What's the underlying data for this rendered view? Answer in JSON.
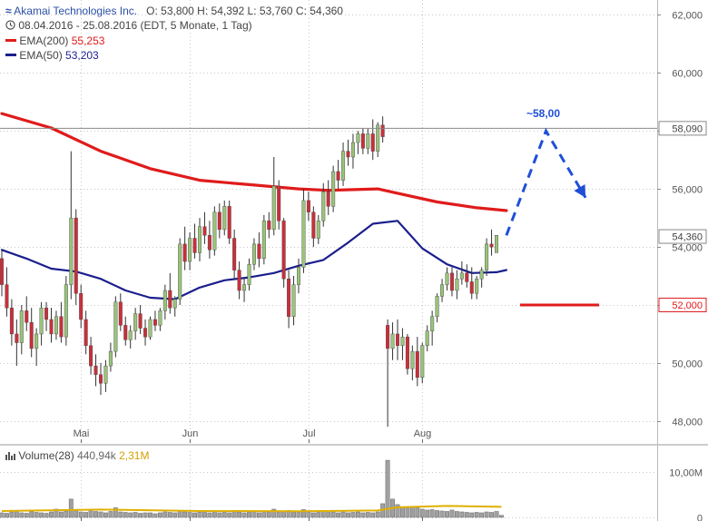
{
  "header": {
    "logo_glyph": "≈",
    "instrument": "Akamai Technologies Inc.",
    "ohlc": "O: 53,800  H: 54,392  L: 53,760  C: 54,360",
    "period": "08.04.2016 - 25.08.2016 (EDT, 5 Monate, 1 Tag)",
    "ema200_label": "EMA(200)",
    "ema200_value": "55,253",
    "ema50_label": "EMA(50)",
    "ema50_value": "53,203",
    "icons": [
      "price-wave-icon",
      "clock-icon"
    ]
  },
  "volume_header": {
    "label": "Volume(28)",
    "value1": "440,94k",
    "value2": "2,31M",
    "icon": "bar-chart-icon"
  },
  "colors": {
    "ema200": "#e01b1b",
    "ema50": "#1a1f8c",
    "bull": "#9ac37a",
    "bear": "#c9303a",
    "wick": "#333333",
    "forecast": "#1f4fd8",
    "support": "#e01b1b",
    "grid": "#c8c8c8",
    "volume_bar": "#a0a0a0",
    "volume_avg": "#e0b000"
  },
  "chart_data": {
    "type": "candlestick",
    "title": "Akamai Technologies Inc.",
    "x_labels": [
      "Mai",
      "Jun",
      "Jul",
      "Aug"
    ],
    "x_label_index": [
      16,
      38,
      62,
      85
    ],
    "y_ticks": [
      48,
      50,
      52,
      54,
      56,
      58,
      60,
      62
    ],
    "y_tick_labels": [
      "48,000",
      "50,000",
      "52,000",
      "54,000",
      "56,000",
      "58,000",
      "60,000",
      "62,000"
    ],
    "ylim": [
      47.4,
      62.2
    ],
    "grid": true,
    "ohlc": [
      [
        53.6,
        53.9,
        52.3,
        52.7
      ],
      [
        52.7,
        53.3,
        51.6,
        51.9
      ],
      [
        51.9,
        52.2,
        50.6,
        51.0
      ],
      [
        51.0,
        51.5,
        49.9,
        50.7
      ],
      [
        50.7,
        52.0,
        50.3,
        51.8
      ],
      [
        51.8,
        52.3,
        51.1,
        51.4
      ],
      [
        51.4,
        51.9,
        50.2,
        50.5
      ],
      [
        50.5,
        51.2,
        49.9,
        51.0
      ],
      [
        51.0,
        52.1,
        50.6,
        51.9
      ],
      [
        51.9,
        52.1,
        51.1,
        51.5
      ],
      [
        51.5,
        51.9,
        50.7,
        51.0
      ],
      [
        51.0,
        51.8,
        50.8,
        51.6
      ],
      [
        51.6,
        52.1,
        50.7,
        50.9
      ],
      [
        50.9,
        53.0,
        50.6,
        52.7
      ],
      [
        52.7,
        57.3,
        52.2,
        55.0
      ],
      [
        55.0,
        55.3,
        52.0,
        52.4
      ],
      [
        52.4,
        52.7,
        51.2,
        51.5
      ],
      [
        51.5,
        51.8,
        50.3,
        50.6
      ],
      [
        50.6,
        50.9,
        49.6,
        49.9
      ],
      [
        49.9,
        50.3,
        49.2,
        49.6
      ],
      [
        49.6,
        50.0,
        48.9,
        49.3
      ],
      [
        49.3,
        50.1,
        49.0,
        49.9
      ],
      [
        49.9,
        50.7,
        49.7,
        50.4
      ],
      [
        50.4,
        52.3,
        50.2,
        52.1
      ],
      [
        52.1,
        52.4,
        51.1,
        51.3
      ],
      [
        51.3,
        51.6,
        50.6,
        50.8
      ],
      [
        50.8,
        51.3,
        50.5,
        51.1
      ],
      [
        51.1,
        51.9,
        50.8,
        51.7
      ],
      [
        51.7,
        52.0,
        51.0,
        51.2
      ],
      [
        51.2,
        51.5,
        50.6,
        50.9
      ],
      [
        50.9,
        51.6,
        50.8,
        51.5
      ],
      [
        51.5,
        51.8,
        51.1,
        51.3
      ],
      [
        51.3,
        51.9,
        51.1,
        51.8
      ],
      [
        51.8,
        52.7,
        51.5,
        52.5
      ],
      [
        52.5,
        53.1,
        51.7,
        51.9
      ],
      [
        51.9,
        52.3,
        51.6,
        52.2
      ],
      [
        52.2,
        54.3,
        52.0,
        54.1
      ],
      [
        54.1,
        54.7,
        53.2,
        53.5
      ],
      [
        53.5,
        54.5,
        53.2,
        54.3
      ],
      [
        54.3,
        54.8,
        53.6,
        53.8
      ],
      [
        53.8,
        55.0,
        53.5,
        54.7
      ],
      [
        54.7,
        55.2,
        54.1,
        54.4
      ],
      [
        54.4,
        54.9,
        53.6,
        53.9
      ],
      [
        53.9,
        55.4,
        53.7,
        55.2
      ],
      [
        55.2,
        55.5,
        54.3,
        54.6
      ],
      [
        54.6,
        55.6,
        54.4,
        55.4
      ],
      [
        55.4,
        55.6,
        54.1,
        54.3
      ],
      [
        54.3,
        54.6,
        52.9,
        53.2
      ],
      [
        53.2,
        53.5,
        52.2,
        52.5
      ],
      [
        52.5,
        52.9,
        52.1,
        52.7
      ],
      [
        52.7,
        53.6,
        52.5,
        53.4
      ],
      [
        53.4,
        54.3,
        53.2,
        54.1
      ],
      [
        54.1,
        54.5,
        53.3,
        53.6
      ],
      [
        53.6,
        55.1,
        53.4,
        54.9
      ],
      [
        54.9,
        55.2,
        54.3,
        54.6
      ],
      [
        54.6,
        57.1,
        54.4,
        56.1
      ],
      [
        56.1,
        56.3,
        54.6,
        54.9
      ],
      [
        54.9,
        55.0,
        52.6,
        52.9
      ],
      [
        52.9,
        53.2,
        51.2,
        51.6
      ],
      [
        51.6,
        53.0,
        51.3,
        52.7
      ],
      [
        52.7,
        53.6,
        52.4,
        53.3
      ],
      [
        53.3,
        56.0,
        53.1,
        55.6
      ],
      [
        55.6,
        55.9,
        54.9,
        55.2
      ],
      [
        55.2,
        55.4,
        54.0,
        54.3
      ],
      [
        54.3,
        55.1,
        54.1,
        54.9
      ],
      [
        54.9,
        56.2,
        54.7,
        55.9
      ],
      [
        55.9,
        56.3,
        55.1,
        55.4
      ],
      [
        55.4,
        56.8,
        55.2,
        56.6
      ],
      [
        56.6,
        57.0,
        56.0,
        56.3
      ],
      [
        56.3,
        57.6,
        56.1,
        57.3
      ],
      [
        57.3,
        57.7,
        56.8,
        57.1
      ],
      [
        57.1,
        57.9,
        56.7,
        57.6
      ],
      [
        57.6,
        58.0,
        57.2,
        57.9
      ],
      [
        57.9,
        58.1,
        57.2,
        57.4
      ],
      [
        57.4,
        58.1,
        57.2,
        57.9
      ],
      [
        57.9,
        58.4,
        57.0,
        57.3
      ],
      [
        57.3,
        58.3,
        57.1,
        58.2
      ],
      [
        58.2,
        58.5,
        57.6,
        57.8
      ],
      [
        51.3,
        51.5,
        47.8,
        50.5
      ],
      [
        50.5,
        51.4,
        50.1,
        51.0
      ],
      [
        51.0,
        51.5,
        50.1,
        50.6
      ],
      [
        50.6,
        51.2,
        50.1,
        50.9
      ],
      [
        50.9,
        51.0,
        49.6,
        49.8
      ],
      [
        49.8,
        50.6,
        49.4,
        50.4
      ],
      [
        50.4,
        50.9,
        49.2,
        49.5
      ],
      [
        49.5,
        50.7,
        49.3,
        50.6
      ],
      [
        50.6,
        51.3,
        50.4,
        51.1
      ],
      [
        51.1,
        51.8,
        50.6,
        51.6
      ],
      [
        51.6,
        52.4,
        51.4,
        52.3
      ],
      [
        52.3,
        52.9,
        52.1,
        52.7
      ],
      [
        52.7,
        53.3,
        52.5,
        53.1
      ],
      [
        53.1,
        53.3,
        52.3,
        52.5
      ],
      [
        52.5,
        53.2,
        52.2,
        52.9
      ],
      [
        52.9,
        53.5,
        52.7,
        53.1
      ],
      [
        53.1,
        53.4,
        52.6,
        52.8
      ],
      [
        52.8,
        53.3,
        52.2,
        52.4
      ],
      [
        52.4,
        53.0,
        52.2,
        52.9
      ],
      [
        52.9,
        53.3,
        52.6,
        53.2
      ],
      [
        53.2,
        54.3,
        53.0,
        54.1
      ],
      [
        54.1,
        54.6,
        53.7,
        54.0
      ],
      [
        53.8,
        54.4,
        53.8,
        54.4
      ]
    ],
    "series": [
      {
        "name": "EMA(200)",
        "x": [
          0,
          10,
          20,
          30,
          40,
          50,
          60,
          66,
          76,
          80,
          88,
          96,
          102
        ],
        "y": [
          58.6,
          58.1,
          57.3,
          56.7,
          56.3,
          56.15,
          56.0,
          55.95,
          56.0,
          55.85,
          55.55,
          55.35,
          55.253
        ]
      },
      {
        "name": "EMA(50)",
        "x": [
          0,
          5,
          10,
          15,
          20,
          25,
          30,
          35,
          40,
          45,
          50,
          55,
          60,
          65,
          70,
          75,
          80,
          85,
          90,
          95,
          100,
          102
        ],
        "y": [
          53.9,
          53.6,
          53.25,
          53.15,
          52.9,
          52.5,
          52.25,
          52.2,
          52.6,
          52.85,
          52.95,
          53.1,
          53.35,
          53.55,
          54.15,
          54.8,
          54.9,
          53.95,
          53.4,
          53.1,
          53.13,
          53.203
        ]
      },
      {
        "name": "forecast",
        "x": [
          102,
          110,
          118
        ],
        "y": [
          54.4,
          58.0,
          55.7
        ]
      }
    ],
    "annotations": {
      "forecast_label": "~58,00",
      "support_level": 52.0,
      "support_label": "52,000",
      "resistance_level": 58.09,
      "resistance_label": "58,090",
      "last_price_label": "54,360",
      "last_price": 54.36
    },
    "volume": {
      "title": "Volume(28)",
      "tick_labels": [
        "0",
        "10,00M"
      ],
      "ticks": [
        0,
        10
      ],
      "ylim": [
        0,
        14.5
      ],
      "values": [
        1.0,
        0.9,
        1.2,
        1.5,
        1.0,
        0.9,
        1.3,
        1.1,
        1.0,
        0.9,
        1.2,
        1.8,
        1.2,
        1.4,
        4.0,
        1.5,
        1.2,
        1.1,
        1.6,
        1.3,
        1.2,
        1.0,
        1.3,
        2.1,
        1.2,
        1.1,
        1.0,
        1.1,
        0.9,
        1.0,
        1.0,
        0.8,
        1.0,
        1.2,
        1.1,
        1.0,
        1.5,
        1.2,
        1.1,
        1.0,
        1.2,
        1.1,
        1.0,
        1.3,
        1.0,
        1.1,
        1.0,
        1.3,
        1.2,
        1.0,
        1.1,
        1.3,
        1.0,
        1.4,
        1.1,
        1.8,
        1.2,
        1.3,
        1.5,
        1.2,
        1.1,
        1.7,
        1.2,
        1.0,
        1.1,
        1.3,
        1.1,
        1.2,
        1.0,
        1.2,
        1.0,
        1.1,
        1.2,
        1.0,
        1.1,
        1.0,
        1.2,
        3.0,
        12.5,
        4.0,
        2.8,
        2.2,
        2.0,
        2.3,
        2.1,
        1.8,
        1.6,
        1.7,
        1.5,
        1.4,
        1.3,
        1.6,
        1.3,
        1.2,
        1.1,
        1.0,
        1.1,
        1.0,
        1.2,
        1.1,
        1.3,
        0.44
      ],
      "avg_x": [
        0,
        20,
        40,
        60,
        76,
        80,
        90,
        101
      ],
      "avg_y": [
        1.4,
        1.7,
        1.4,
        1.35,
        1.5,
        2.2,
        2.5,
        2.31
      ]
    }
  }
}
